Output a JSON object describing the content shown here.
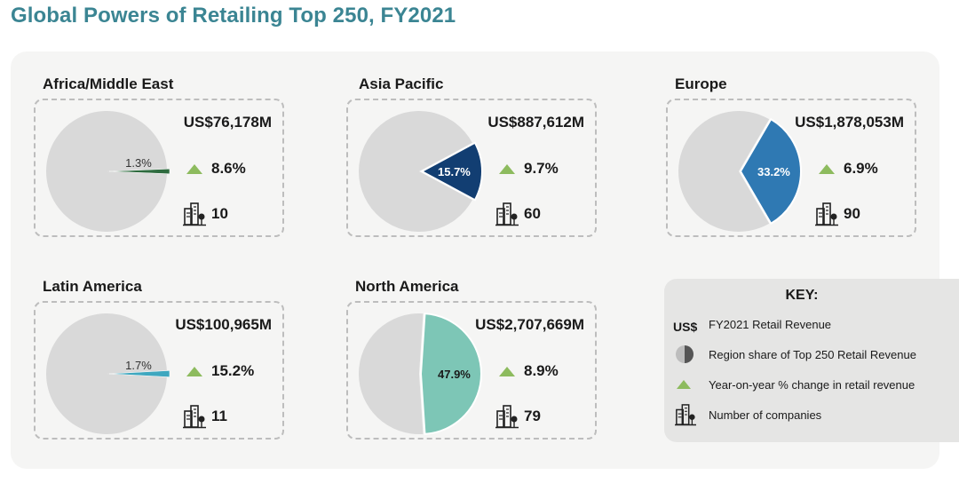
{
  "title": "Global Powers of Retailing Top 250, FY2021",
  "colors": {
    "title": "#3b8593",
    "pie_rest": "#d9d9d9",
    "yoy": "#8dbb5e"
  },
  "icons": {
    "yoy": "triangle-up-icon",
    "companies": "buildings-icon",
    "share": "half-pie-icon"
  },
  "chart_data": {
    "type": "pie",
    "regions": [
      {
        "name": "Africa/Middle East",
        "revenue": "US$76,178M",
        "share": 1.3,
        "share_label": "1.3%",
        "yoy": "8.6%",
        "companies": "10",
        "color": "#2e6b3f"
      },
      {
        "name": "Asia Pacific",
        "revenue": "US$887,612M",
        "share": 15.7,
        "share_label": "15.7%",
        "yoy": "9.7%",
        "companies": "60",
        "color": "#123e72"
      },
      {
        "name": "Europe",
        "revenue": "US$1,878,053M",
        "share": 33.2,
        "share_label": "33.2%",
        "yoy": "6.9%",
        "companies": "90",
        "color": "#2f79b3"
      },
      {
        "name": "Latin America",
        "revenue": "US$100,965M",
        "share": 1.7,
        "share_label": "1.7%",
        "yoy": "15.2%",
        "companies": "11",
        "color": "#3ea7bf"
      },
      {
        "name": "North America",
        "revenue": "US$2,707,669M",
        "share": 47.9,
        "share_label": "47.9%",
        "yoy": "8.9%",
        "companies": "79",
        "color": "#7dc6b6"
      }
    ]
  },
  "key": {
    "title": "KEY:",
    "us_symbol": "US$",
    "revenue": "FY2021 Retail Revenue",
    "share": "Region share of Top 250 Retail Revenue",
    "yoy": "Year-on-year % change in retail revenue",
    "companies": "Number of companies"
  }
}
